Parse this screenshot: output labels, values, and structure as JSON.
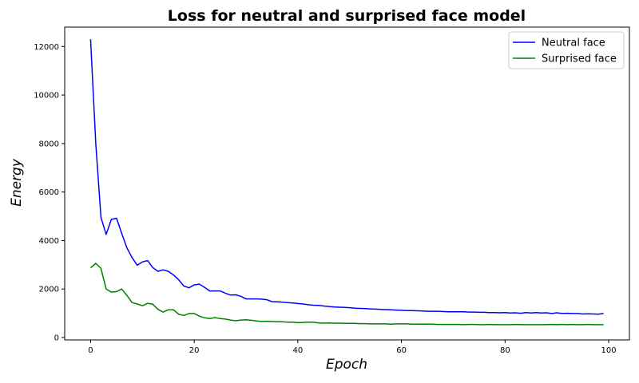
{
  "chart_data": {
    "type": "line",
    "title": "Loss for neutral and surprised face model",
    "xlabel": "Epoch",
    "ylabel": "Energy",
    "xlim": [
      -5,
      104
    ],
    "ylim": [
      -100,
      12800
    ],
    "xticks": [
      0,
      20,
      40,
      60,
      80,
      100
    ],
    "yticks": [
      0,
      2000,
      4000,
      6000,
      8000,
      10000,
      12000
    ],
    "grid": false,
    "legend_position": "top-right",
    "x": [
      0,
      1,
      2,
      3,
      4,
      5,
      6,
      7,
      8,
      9,
      10,
      11,
      12,
      13,
      14,
      15,
      16,
      17,
      18,
      19,
      20,
      21,
      22,
      23,
      24,
      25,
      26,
      27,
      28,
      29,
      30,
      31,
      32,
      33,
      34,
      35,
      36,
      37,
      38,
      39,
      40,
      41,
      42,
      43,
      44,
      45,
      46,
      47,
      48,
      49,
      50,
      51,
      52,
      53,
      54,
      55,
      56,
      57,
      58,
      59,
      60,
      61,
      62,
      63,
      64,
      65,
      66,
      67,
      68,
      69,
      70,
      71,
      72,
      73,
      74,
      75,
      76,
      77,
      78,
      79,
      80,
      81,
      82,
      83,
      84,
      85,
      86,
      87,
      88,
      89,
      90,
      91,
      92,
      93,
      94,
      95,
      96,
      97,
      98,
      99
    ],
    "series": [
      {
        "name": "Neutral face",
        "color": "#0000ff",
        "values": [
          12300,
          8000,
          4950,
          4250,
          4870,
          4920,
          4300,
          3700,
          3300,
          2980,
          3120,
          3170,
          2880,
          2730,
          2790,
          2730,
          2580,
          2380,
          2120,
          2050,
          2170,
          2200,
          2070,
          1920,
          1920,
          1920,
          1830,
          1750,
          1760,
          1700,
          1590,
          1590,
          1590,
          1580,
          1560,
          1480,
          1470,
          1460,
          1440,
          1420,
          1400,
          1380,
          1350,
          1330,
          1320,
          1300,
          1280,
          1260,
          1250,
          1240,
          1230,
          1210,
          1200,
          1190,
          1180,
          1170,
          1160,
          1150,
          1140,
          1130,
          1120,
          1110,
          1110,
          1100,
          1090,
          1080,
          1080,
          1080,
          1070,
          1060,
          1060,
          1060,
          1060,
          1050,
          1050,
          1040,
          1040,
          1030,
          1030,
          1020,
          1030,
          1010,
          1020,
          1000,
          1030,
          1010,
          1030,
          1010,
          1020,
          990,
          1020,
          990,
          1000,
          990,
          990,
          970,
          980,
          970,
          960,
          990
        ]
      },
      {
        "name": "Surprised face",
        "color": "#008000",
        "values": [
          2870,
          3060,
          2850,
          2000,
          1870,
          1890,
          2000,
          1740,
          1440,
          1380,
          1310,
          1410,
          1370,
          1160,
          1050,
          1140,
          1140,
          960,
          910,
          990,
          990,
          880,
          810,
          780,
          820,
          780,
          760,
          720,
          690,
          720,
          730,
          710,
          680,
          660,
          670,
          660,
          650,
          650,
          630,
          630,
          610,
          620,
          630,
          630,
          600,
          590,
          600,
          590,
          590,
          580,
          580,
          580,
          570,
          570,
          560,
          560,
          560,
          560,
          550,
          560,
          560,
          560,
          550,
          550,
          550,
          550,
          550,
          540,
          540,
          540,
          540,
          540,
          530,
          540,
          540,
          530,
          530,
          540,
          530,
          530,
          530,
          530,
          540,
          530,
          530,
          530,
          530,
          530,
          530,
          540,
          530,
          540,
          530,
          540,
          530,
          530,
          540,
          530,
          530,
          530
        ]
      }
    ]
  }
}
